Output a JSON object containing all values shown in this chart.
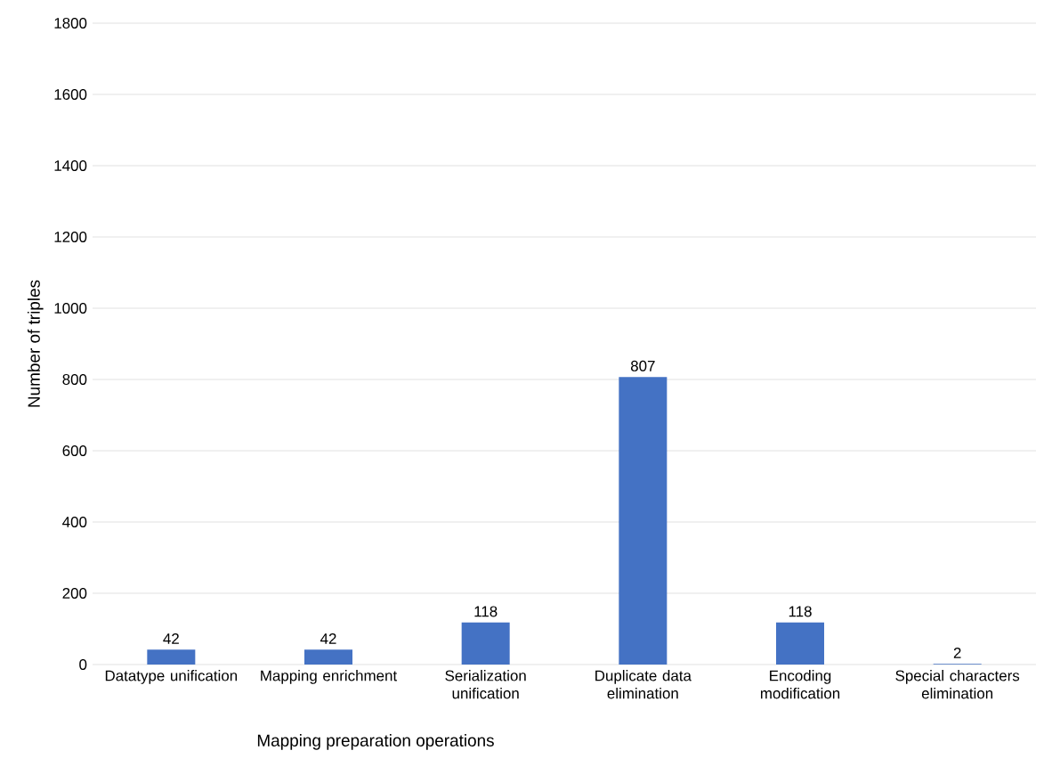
{
  "chart_data": {
    "type": "bar",
    "xlabel": "Mapping preparation operations",
    "ylabel": "Number of triples",
    "categories": [
      "Datatype unification",
      "Mapping enrichment",
      "Serialization unification",
      "Duplicate data elimination",
      "Encoding modification",
      "Special characters elimination"
    ],
    "values": [
      42,
      42,
      118,
      807,
      118,
      2
    ],
    "color": "#4472c4",
    "ylim": [
      0,
      1800
    ],
    "yticks": [
      0,
      200,
      400,
      600,
      800,
      1000,
      1200,
      1400,
      1600,
      1800
    ],
    "grid": "y",
    "data_labels": true
  }
}
